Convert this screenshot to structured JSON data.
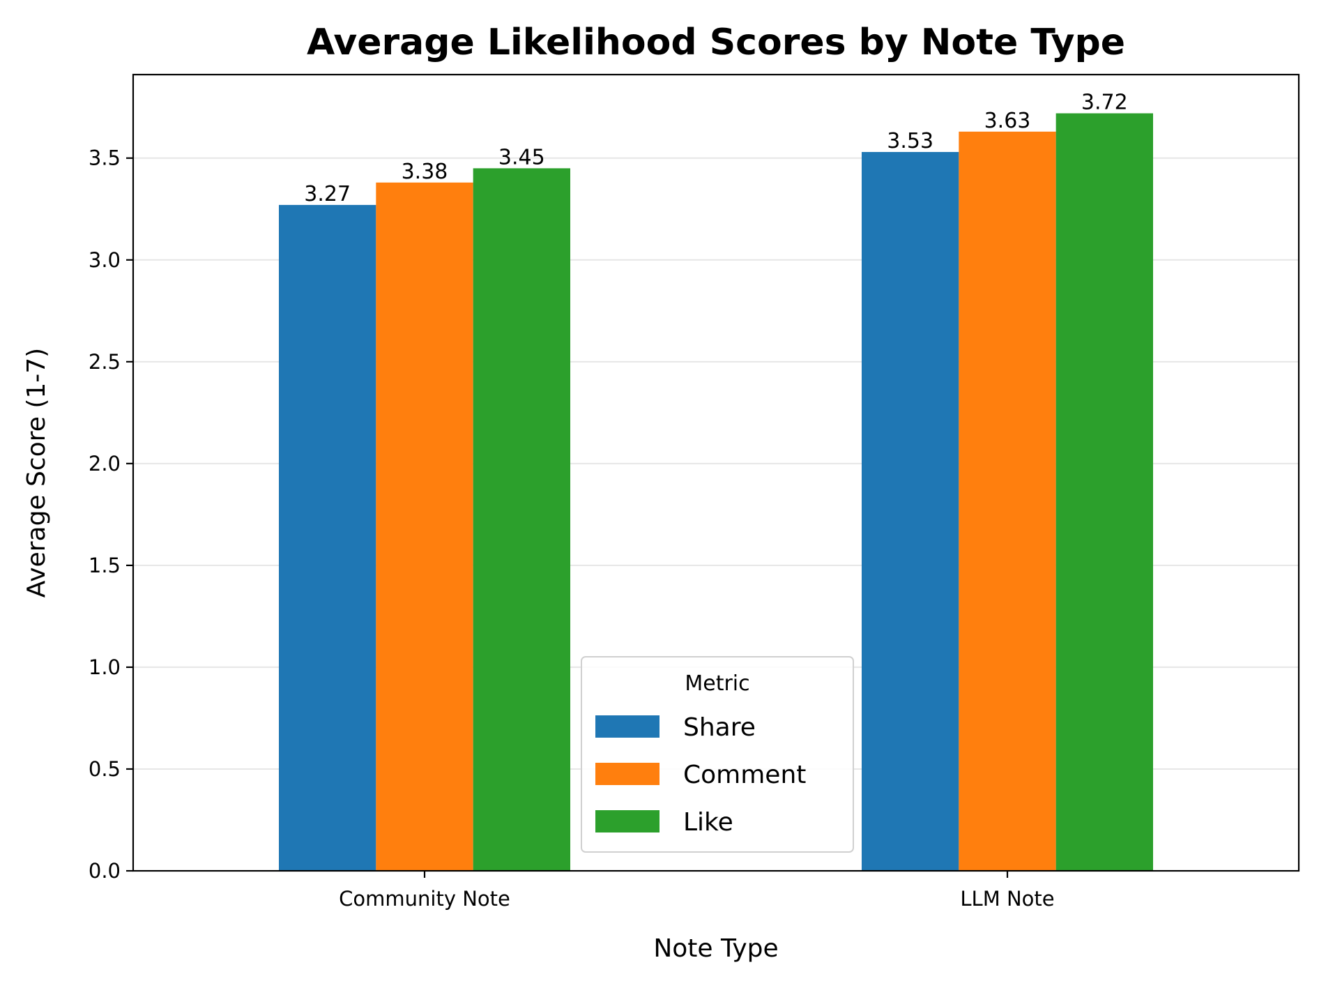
{
  "chart_data": {
    "type": "bar",
    "title": "Average Likelihood Scores by Note Type",
    "xlabel": "Note Type",
    "ylabel": "Average Score (1-7)",
    "categories": [
      "Community Note",
      "LLM Note"
    ],
    "series": [
      {
        "name": "Share",
        "values": [
          3.27,
          3.53
        ],
        "color": "#1f77b4"
      },
      {
        "name": "Comment",
        "values": [
          3.38,
          3.63
        ],
        "color": "#ff7f0e"
      },
      {
        "name": "Like",
        "values": [
          3.45,
          3.72
        ],
        "color": "#2ca02c"
      }
    ],
    "ylim": [
      0,
      3.91
    ],
    "yticks": [
      0.0,
      0.5,
      1.0,
      1.5,
      2.0,
      2.5,
      3.0,
      3.5
    ],
    "ytick_labels": [
      "0.0",
      "0.5",
      "1.0",
      "1.5",
      "2.0",
      "2.5",
      "3.0",
      "3.5"
    ],
    "value_labels": [
      [
        "3.27",
        "3.53"
      ],
      [
        "3.38",
        "3.63"
      ],
      [
        "3.45",
        "3.72"
      ]
    ],
    "grid": "horizontal",
    "legend": {
      "title": "Metric",
      "placement": "bottom-center"
    }
  }
}
